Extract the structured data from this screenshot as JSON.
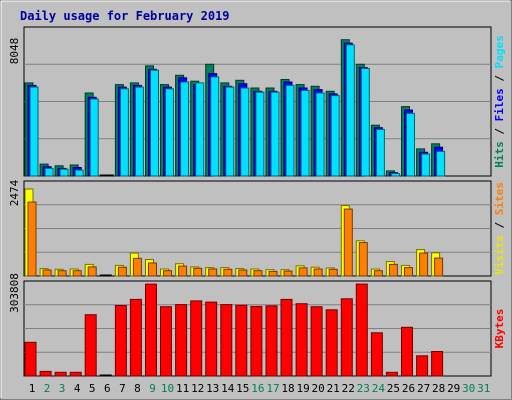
{
  "chart_data": {
    "type": "bar",
    "title": "Daily usage for February 2019",
    "days": [
      "1",
      "2",
      "3",
      "4",
      "5",
      "6",
      "7",
      "8",
      "9",
      "10",
      "11",
      "12",
      "13",
      "14",
      "15",
      "16",
      "17",
      "18",
      "19",
      "20",
      "21",
      "22",
      "23",
      "24",
      "25",
      "26",
      "27",
      "28",
      "29",
      "30",
      "31"
    ],
    "weekend_days": [
      "2",
      "3",
      "9",
      "10",
      "16",
      "17",
      "23",
      "24",
      "30",
      "31"
    ],
    "panels": [
      {
        "id": "hits",
        "max_label": "8048",
        "ymax": 8800,
        "right_labels": [
          {
            "text": "Hits",
            "color": "#00805c"
          },
          {
            "text": " / ",
            "color": "#000000"
          },
          {
            "text": "Files",
            "color": "#0000ff"
          },
          {
            "text": " / ",
            "color": "#000000"
          },
          {
            "text": "Pages",
            "color": "#00e0ff"
          }
        ],
        "series": [
          {
            "name": "Hits",
            "color": "#00805c",
            "values": [
              5500,
              700,
              600,
              650,
              4900,
              0,
              5400,
              5500,
              6500,
              5400,
              5950,
              5600,
              6600,
              5500,
              5650,
              5200,
              5200,
              5700,
              5400,
              5300,
              5000,
              8048,
              6600,
              3000,
              300,
              4100,
              1600,
              1900,
              null,
              null,
              null
            ]
          },
          {
            "name": "Files",
            "color": "#0000ff",
            "values": [
              5350,
              550,
              450,
              500,
              4650,
              0,
              5250,
              5350,
              6300,
              5250,
              5800,
              5400,
              6050,
              5300,
              5450,
              5000,
              5000,
              5550,
              5200,
              5100,
              4850,
              7850,
              6400,
              2850,
              200,
              3900,
              1400,
              1700,
              null,
              null,
              null
            ]
          },
          {
            "name": "Pages",
            "color": "#00e0ff",
            "values": [
              5250,
              450,
              400,
              350,
              4550,
              0,
              5150,
              5250,
              6250,
              5150,
              5550,
              5500,
              5850,
              5250,
              5200,
              4950,
              4950,
              5350,
              5050,
              4900,
              4750,
              7750,
              6350,
              2750,
              150,
              3700,
              1300,
              1450,
              null,
              null,
              null
            ]
          }
        ]
      },
      {
        "id": "visits",
        "max_label": "2474",
        "ymax": 2700,
        "right_labels": [
          {
            "text": "Visits",
            "color": "#e8e800"
          },
          {
            "text": " / ",
            "color": "#000000"
          },
          {
            "text": "Sites",
            "color": "#ff8000"
          }
        ],
        "series": [
          {
            "name": "Visits",
            "color": "#ffff00",
            "values": [
              2474,
              210,
              190,
              200,
              330,
              0,
              300,
              650,
              470,
              200,
              350,
              260,
              240,
              240,
              210,
              200,
              180,
              180,
              290,
              250,
              230,
              2000,
              1000,
              200,
              410,
              300,
              750,
              660,
              null,
              null,
              null
            ]
          },
          {
            "name": "Sites",
            "color": "#ff8000",
            "values": [
              2100,
              170,
              150,
              150,
              260,
              0,
              250,
              500,
              370,
              150,
              280,
              220,
              200,
              190,
              170,
              150,
              130,
              140,
              230,
              200,
              190,
              1900,
              950,
              150,
              330,
              240,
              650,
              510,
              null,
              null,
              null
            ]
          }
        ]
      },
      {
        "id": "kbytes",
        "max_label": "303808",
        "ymax": 310000,
        "right_labels": [
          {
            "text": "KBytes",
            "color": "#ff0000"
          }
        ],
        "series": [
          {
            "name": "KBytes",
            "color": "#ff0000",
            "values": [
              110000,
              15000,
              12000,
              12000,
              200000,
              0,
              230000,
              250000,
              300000,
              226000,
              233000,
              245000,
              241000,
              233000,
              231000,
              227000,
              229000,
              250000,
              236000,
              226000,
              216000,
              252000,
              300000,
              141000,
              12000,
              159000,
              66000,
              80000,
              null,
              null,
              null
            ]
          }
        ]
      }
    ]
  }
}
